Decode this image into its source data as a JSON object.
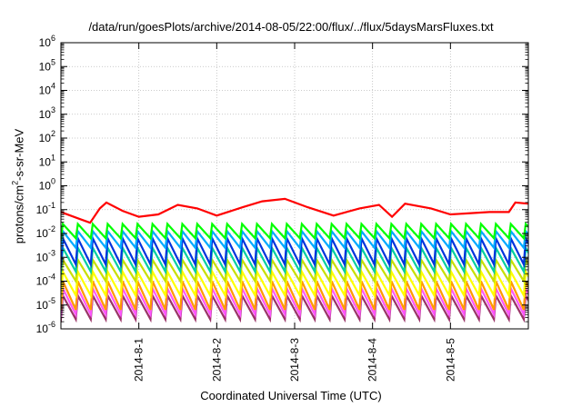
{
  "chart_data": {
    "type": "line",
    "title": "/data/run/goesPlots/archive/2014-08-05/22:00/flux/../flux/5daysMarsFluxes.txt",
    "xlabel": "Coordinated Universal Time (UTC)",
    "ylabel": {
      "prefix": "protons/cm",
      "sup": "2",
      "suffix": "-s-sr-MeV"
    },
    "xscale": "date (days)",
    "xlim": [
      "2014-07-31 00:00",
      "2014-08-06 00:00"
    ],
    "x_tick_labels": [
      "2014-8-1",
      "2014-8-2",
      "2014-8-3",
      "2014-8-4",
      "2014-8-5"
    ],
    "yscale": "log",
    "ylim": [
      1e-06,
      1000000.0
    ],
    "y_tick_exponents": [
      "-6",
      "-5",
      "-4",
      "-3",
      "-2",
      "-1",
      "0",
      "1",
      "2",
      "3",
      "4",
      "5",
      "6"
    ],
    "grid": true,
    "legend": "none",
    "oscillation_period_hours": 4.6,
    "series": [
      {
        "color": "#ff0000",
        "type": "profile",
        "log10_points": [
          [
            "2014-07-31 00:00",
            -1.1
          ],
          [
            "2014-07-31 06:00",
            -1.4
          ],
          [
            "2014-07-31 09:00",
            -1.55
          ],
          [
            "2014-07-31 12:00",
            -0.95
          ],
          [
            "2014-07-31 14:00",
            -0.7
          ],
          [
            "2014-07-31 19:00",
            -1.05
          ],
          [
            "2014-08-01 00:00",
            -1.3
          ],
          [
            "2014-08-01 06:00",
            -1.2
          ],
          [
            "2014-08-01 12:00",
            -0.8
          ],
          [
            "2014-08-01 18:00",
            -0.95
          ],
          [
            "2014-08-02 00:00",
            -1.25
          ],
          [
            "2014-08-02 08:00",
            -0.9
          ],
          [
            "2014-08-02 14:00",
            -0.65
          ],
          [
            "2014-08-02 21:00",
            -0.55
          ],
          [
            "2014-08-03 04:00",
            -0.9
          ],
          [
            "2014-08-03 12:00",
            -1.25
          ],
          [
            "2014-08-03 20:00",
            -0.95
          ],
          [
            "2014-08-04 02:00",
            -0.8
          ],
          [
            "2014-08-04 06:00",
            -1.3
          ],
          [
            "2014-08-04 10:00",
            -0.75
          ],
          [
            "2014-08-04 18:00",
            -0.95
          ],
          [
            "2014-08-05 00:00",
            -1.2
          ],
          [
            "2014-08-05 12:00",
            -1.1
          ],
          [
            "2014-08-05 18:00",
            -1.1
          ],
          [
            "2014-08-05 20:00",
            -0.7
          ],
          [
            "2014-08-06 00:00",
            -0.75
          ]
        ]
      },
      {
        "color": "#00ff00",
        "type": "sawtooth",
        "log10_high": -1.6,
        "log10_low": -2.2
      },
      {
        "color": "#00aaff",
        "type": "sawtooth",
        "log10_high": -1.9,
        "log10_low": -2.6
      },
      {
        "color": "#0033dd",
        "type": "sawtooth",
        "log10_high": -2.2,
        "log10_low": -3.3
      },
      {
        "color": "#00d0a0",
        "type": "sawtooth",
        "log10_high": -2.6,
        "log10_low": -3.6
      },
      {
        "color": "#c8e000",
        "type": "sawtooth",
        "log10_high": -3.1,
        "log10_low": -4.0
      },
      {
        "color": "#ffff00",
        "type": "sawtooth",
        "log10_high": -3.6,
        "log10_low": -4.6
      },
      {
        "color": "#ff9900",
        "type": "sawtooth",
        "log10_high": -4.0,
        "log10_low": -5.2
      },
      {
        "color": "#ff55ff",
        "type": "sawtooth",
        "log10_high": -4.3,
        "log10_low": -5.4
      },
      {
        "color": "#993366",
        "type": "sawtooth",
        "log10_high": -4.6,
        "log10_low": -5.6
      }
    ]
  }
}
